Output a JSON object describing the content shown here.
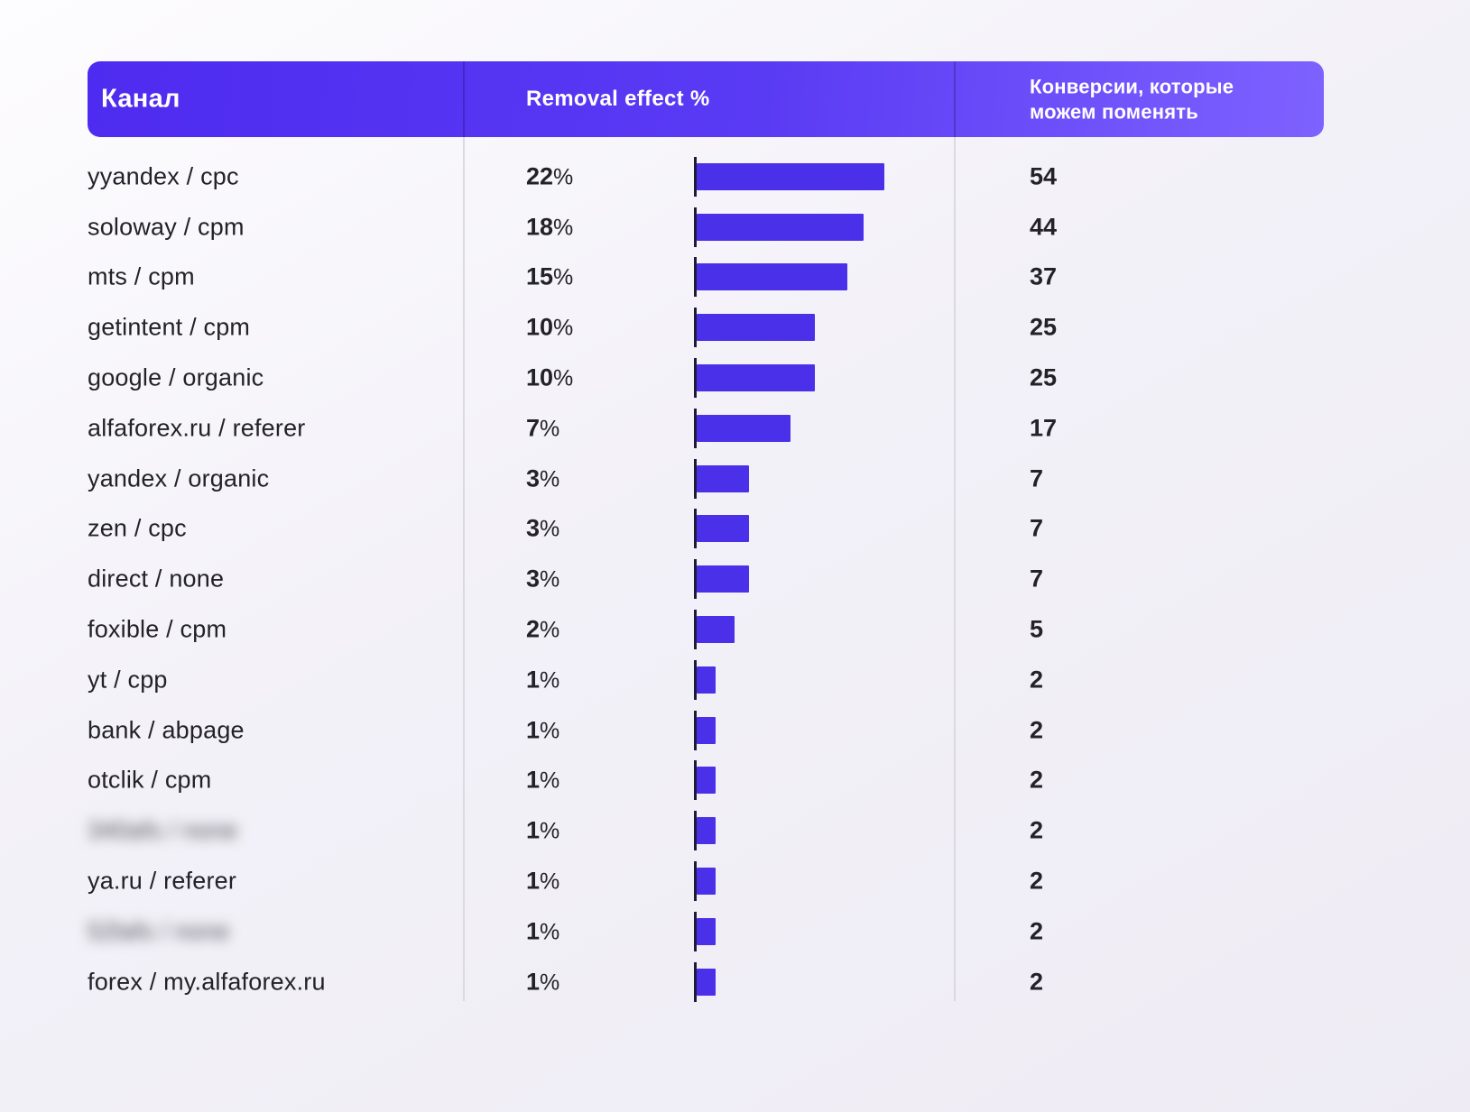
{
  "labels": {
    "percent_sign": "%"
  },
  "header": {
    "channel": "Канал",
    "effect": "Removal effect %",
    "conversions": "Конверсии, которые можем поменять"
  },
  "accent_color": "#4a30e8",
  "rows": [
    {
      "channel": "yyandex / cpc",
      "effect_pct": 22,
      "conversions": 54,
      "blurred": false
    },
    {
      "channel": "soloway / cpm",
      "effect_pct": 18,
      "conversions": 44,
      "blurred": false
    },
    {
      "channel": "mts / cpm",
      "effect_pct": 15,
      "conversions": 37,
      "blurred": false
    },
    {
      "channel": "getintent / cpm",
      "effect_pct": 10,
      "conversions": 25,
      "blurred": false
    },
    {
      "channel": "google / organic",
      "effect_pct": 10,
      "conversions": 25,
      "blurred": false
    },
    {
      "channel": "alfaforex.ru / referer",
      "effect_pct": 7,
      "conversions": 17,
      "blurred": false
    },
    {
      "channel": "yandex / organic",
      "effect_pct": 3,
      "conversions": 7,
      "blurred": false
    },
    {
      "channel": "zen / cpc",
      "effect_pct": 3,
      "conversions": 7,
      "blurred": false
    },
    {
      "channel": "direct / none",
      "effect_pct": 3,
      "conversions": 7,
      "blurred": false
    },
    {
      "channel": "foxible / cpm",
      "effect_pct": 2,
      "conversions": 5,
      "blurred": false
    },
    {
      "channel": "yt / cpp",
      "effect_pct": 1,
      "conversions": 2,
      "blurred": false
    },
    {
      "channel": "bank / abpage",
      "effect_pct": 1,
      "conversions": 2,
      "blurred": false
    },
    {
      "channel": "otclik / cpm",
      "effect_pct": 1,
      "conversions": 2,
      "blurred": false
    },
    {
      "channel": "340afs / none",
      "effect_pct": 1,
      "conversions": 2,
      "blurred": true
    },
    {
      "channel": "ya.ru / referer",
      "effect_pct": 1,
      "conversions": 2,
      "blurred": false
    },
    {
      "channel": "52lafs / none",
      "effect_pct": 1,
      "conversions": 2,
      "blurred": true
    },
    {
      "channel": "forex / my.alfaforex.ru",
      "effect_pct": 1,
      "conversions": 2,
      "blurred": false
    }
  ],
  "chart_data": {
    "type": "bar",
    "orientation": "horizontal",
    "title": "",
    "xlabel": "Removal effect %",
    "ylabel": "Канал",
    "xlim": [
      0,
      22
    ],
    "grid": false,
    "legend_position": "none",
    "categories": [
      "yyandex / cpc",
      "soloway / cpm",
      "mts / cpm",
      "getintent / cpm",
      "google / organic",
      "alfaforex.ru / referer",
      "yandex / organic",
      "zen / cpc",
      "direct / none",
      "foxible / cpm",
      "yt / cpp",
      "bank / abpage",
      "otclik / cpm",
      "340afs / none",
      "ya.ru / referer",
      "52lafs / none",
      "forex / my.alfaforex.ru"
    ],
    "series": [
      {
        "name": "Removal effect %",
        "values": [
          22,
          18,
          15,
          10,
          10,
          7,
          3,
          3,
          3,
          2,
          1,
          1,
          1,
          1,
          1,
          1,
          1
        ]
      },
      {
        "name": "Конверсии, которые можем поменять",
        "values": [
          54,
          44,
          37,
          25,
          25,
          17,
          7,
          7,
          7,
          5,
          2,
          2,
          2,
          2,
          2,
          2,
          2
        ]
      }
    ],
    "blurred_category_indexes": [
      13,
      15
    ]
  }
}
